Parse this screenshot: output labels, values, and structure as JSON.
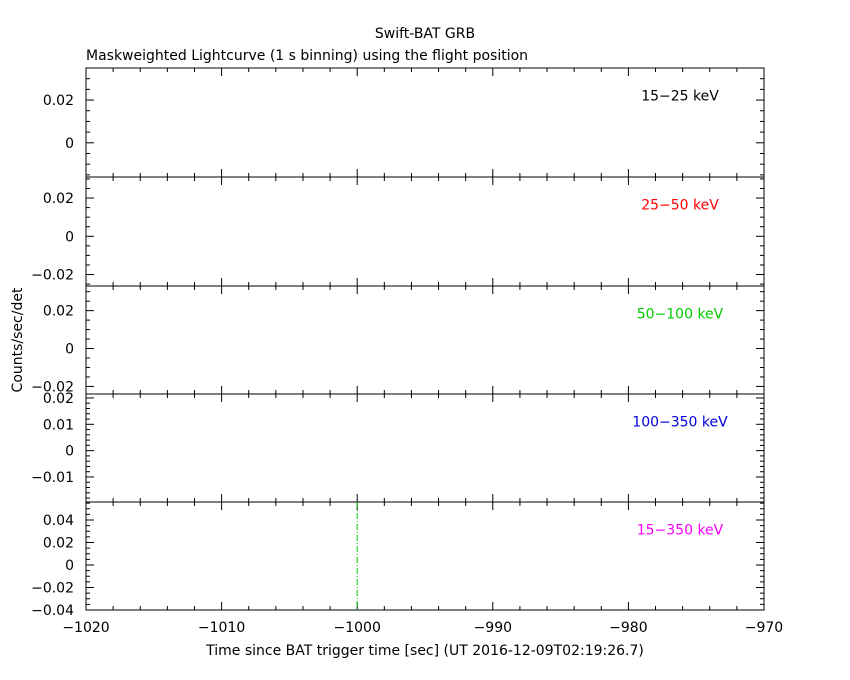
{
  "chart_data": {
    "type": "line",
    "title": "Swift-BAT GRB",
    "subtitle": "Maskweighted Lightcurve (1 s binning) using the flight position",
    "xlabel": "Time since BAT trigger time [sec] (UT 2016-12-09T02:19:26.7)",
    "ylabel": "Counts/sec/det",
    "xlim": [
      -1020,
      -970
    ],
    "x_ticks": [
      -1020,
      -1010,
      -1000,
      -990,
      -980,
      -970
    ],
    "x_tick_labels": [
      "−1020",
      "−1010",
      "−1000",
      "−990",
      "−980",
      "−970"
    ],
    "x_minor_step": 2,
    "trigger_marker_x": -1000,
    "trigger_marker_color": "#00cc00",
    "grid": false,
    "panels": [
      {
        "name": "15−25 keV",
        "color": "#000000",
        "ylim": [
          -0.016,
          0.035
        ],
        "y_ticks": [
          0,
          0.02
        ],
        "y_tick_labels": [
          "0",
          "0.02"
        ],
        "y_minor_step": 0.005,
        "values": []
      },
      {
        "name": "25−50 keV",
        "color": "#ff0000",
        "ylim": [
          -0.026,
          0.031
        ],
        "y_ticks": [
          -0.02,
          0,
          0.02
        ],
        "y_tick_labels": [
          "−0.02",
          "0",
          "0.02"
        ],
        "y_minor_step": 0.005,
        "values": []
      },
      {
        "name": "50−100 keV",
        "color": "#00cc00",
        "ylim": [
          -0.024,
          0.033
        ],
        "y_ticks": [
          -0.02,
          0,
          0.02
        ],
        "y_tick_labels": [
          "−0.02",
          "0",
          "0.02"
        ],
        "y_minor_step": 0.005,
        "values": []
      },
      {
        "name": "100−350 keV",
        "color": "#0000dd",
        "ylim": [
          -0.0195,
          0.0215
        ],
        "y_ticks": [
          -0.01,
          0,
          0.01,
          0.02
        ],
        "y_tick_labels": [
          "−0.01",
          "0",
          "0.01",
          "0.02"
        ],
        "y_minor_step": 0.002,
        "values": []
      },
      {
        "name": "15−350 keV",
        "color": "#ff00ff",
        "ylim": [
          -0.04,
          0.056
        ],
        "y_ticks": [
          -0.04,
          -0.02,
          0,
          0.02,
          0.04
        ],
        "y_tick_labels": [
          "−0.04",
          "−0.02",
          "0",
          "0.02",
          "0.04"
        ],
        "y_minor_step": 0.005,
        "values": []
      }
    ]
  }
}
